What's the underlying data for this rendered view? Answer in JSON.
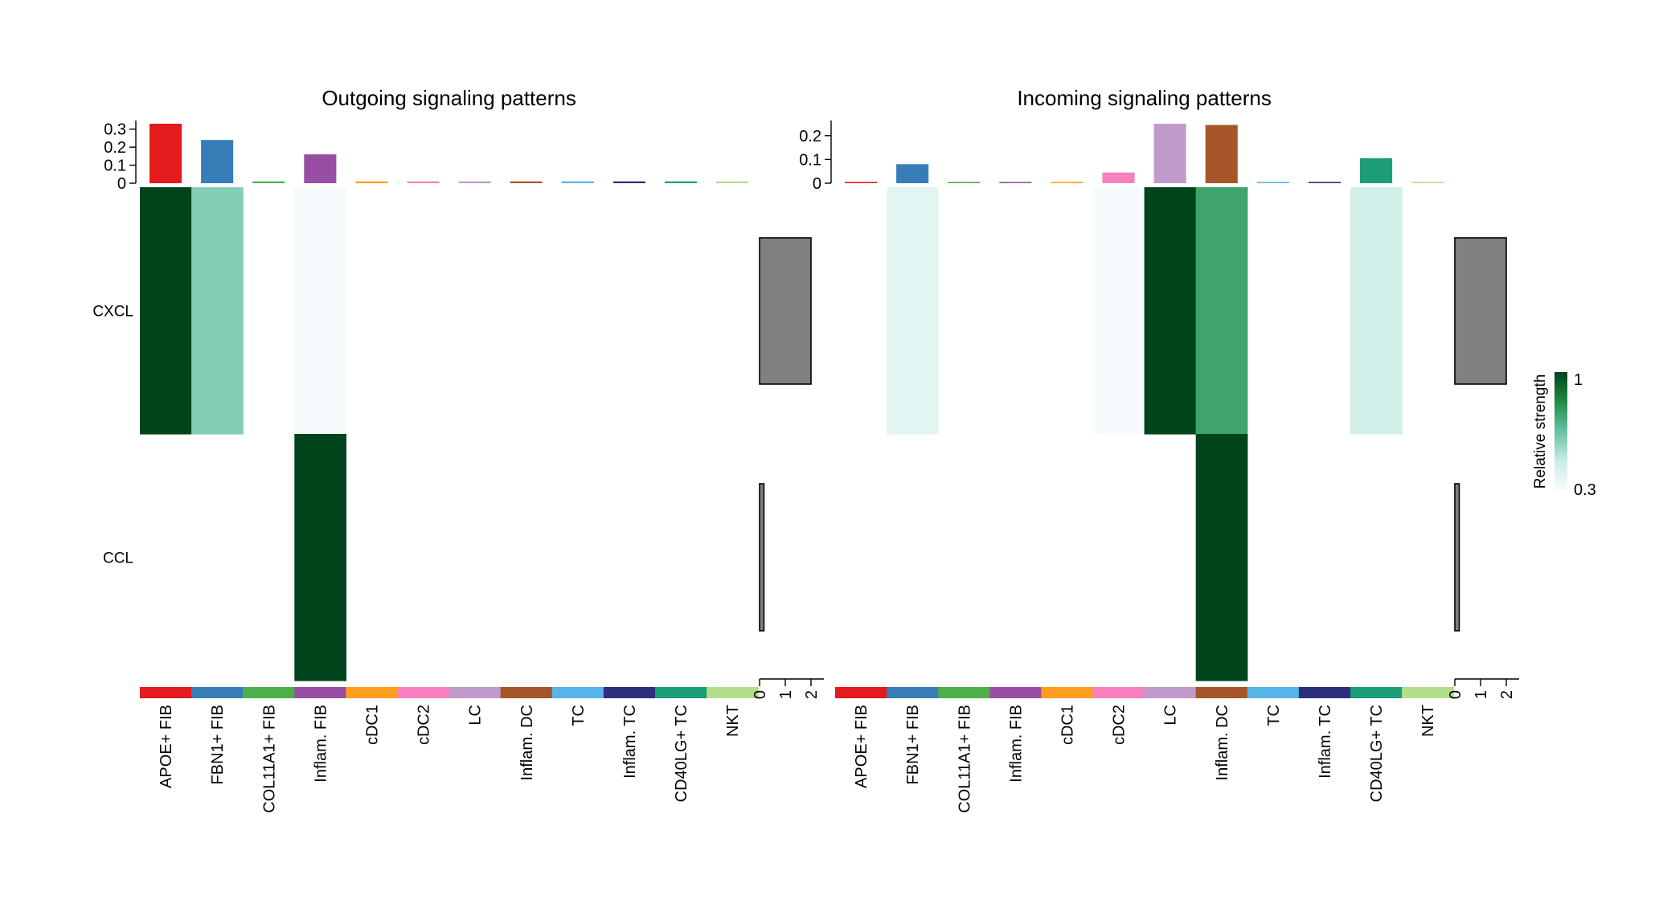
{
  "chart_data": {
    "type": "heatmap",
    "cell_types": [
      "APOE+ FIB",
      "FBN1+ FIB",
      "COL11A1+ FIB",
      "Inflam. FIB",
      "cDC1",
      "cDC2",
      "LC",
      "Inflam. DC",
      "TC",
      "Inflam. TC",
      "CD40LG+ TC",
      "NKT"
    ],
    "cell_colors": [
      "#E41A1C",
      "#377EB8",
      "#4DAF4A",
      "#984EA3",
      "#FF9D1E",
      "#F781BF",
      "#C09ACB",
      "#A65628",
      "#56B4E9",
      "#2C2F7B",
      "#1B9E77",
      "#B2DF8A"
    ],
    "pathways": [
      "CXCL",
      "CCL"
    ],
    "panels": [
      {
        "title": "Outgoing signaling patterns",
        "top_bar_values": [
          0.33,
          0.24,
          0.01,
          0.16,
          0.01,
          0.01,
          0.01,
          0.01,
          0.01,
          0.01,
          0.01,
          0.01
        ],
        "top_ylim": [
          0,
          0.33
        ],
        "top_ticks": [
          0,
          0.1,
          0.2,
          0.3
        ],
        "top_tick_labels": [
          "0",
          "0.1",
          "0.2",
          "0.3"
        ],
        "heat": [
          [
            1.0,
            0.6,
            null,
            0.31,
            null,
            null,
            null,
            null,
            null,
            null,
            null,
            null
          ],
          [
            null,
            null,
            null,
            1.0,
            null,
            null,
            null,
            null,
            null,
            null,
            null,
            null
          ]
        ],
        "right_bar_values": [
          2.0,
          0.17
        ],
        "right_xlim": [
          0,
          2.5
        ],
        "right_ticks": [
          0,
          1,
          2
        ],
        "right_tick_labels": [
          "0",
          "1",
          "2"
        ]
      },
      {
        "title": "Incoming signaling patterns",
        "top_bar_values": [
          0.005,
          0.08,
          0.005,
          0.005,
          0.005,
          0.045,
          0.25,
          0.245,
          0.005,
          0.005,
          0.105,
          0.005
        ],
        "top_ylim": [
          0,
          0.25
        ],
        "top_ticks": [
          0,
          0.1,
          0.2
        ],
        "top_tick_labels": [
          "0",
          "0.1",
          "0.2"
        ],
        "heat": [
          [
            null,
            0.38,
            null,
            null,
            null,
            0.31,
            1.0,
            0.75,
            null,
            null,
            0.45,
            null
          ],
          [
            null,
            null,
            null,
            null,
            null,
            null,
            null,
            1.0,
            null,
            null,
            null,
            null
          ]
        ],
        "right_bar_values": [
          2.0,
          0.17
        ],
        "right_xlim": [
          0,
          2.5
        ],
        "right_ticks": [
          0,
          1,
          2
        ],
        "right_tick_labels": [
          "0",
          "1",
          "2"
        ]
      }
    ],
    "legend": {
      "title": "Relative strength",
      "min_label": "0.3",
      "max_label": "1",
      "colors": [
        "#F7FCFD",
        "#CCECE6",
        "#66C2A4",
        "#238B45",
        "#00441B"
      ],
      "placement": "right"
    }
  }
}
